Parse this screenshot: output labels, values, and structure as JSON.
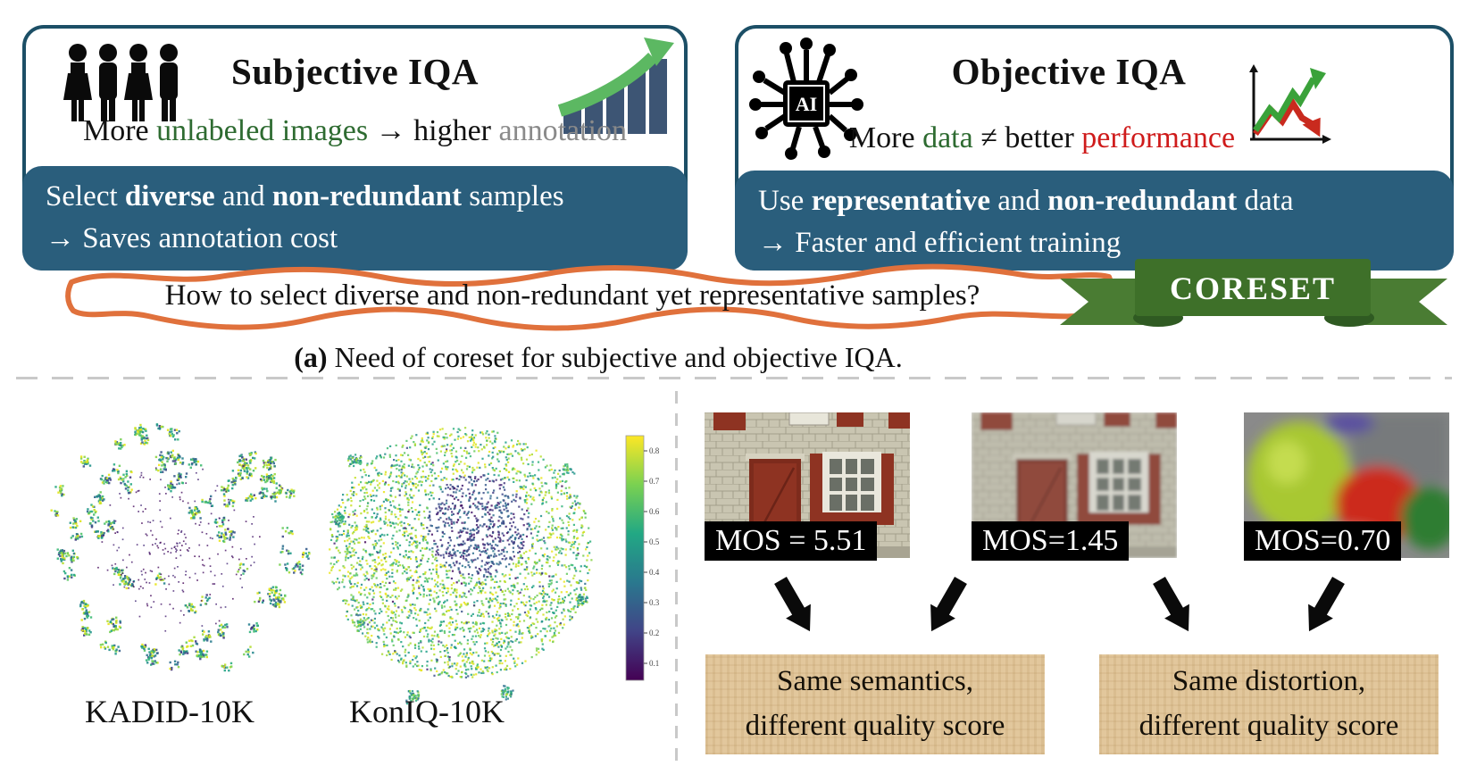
{
  "subjective_panel": {
    "title": "Subjective IQA",
    "fact_line": {
      "pre": "More ",
      "green": "unlabeled images",
      "mid": " → higher ",
      "gray": "annotation"
    },
    "action_line1": {
      "pre": "Select ",
      "bold1": "diverse",
      "mid": " and ",
      "bold2": "non-redundant",
      "post": " samples"
    },
    "action_line2": "→ Saves annotation cost"
  },
  "objective_panel": {
    "title": "Objective IQA",
    "ai_chip_label": "AI",
    "fact_line": {
      "pre": "More ",
      "green": "data",
      "mid": " ≠ better ",
      "red": "performance"
    },
    "action_line1": {
      "pre": "Use ",
      "bold1": "representative",
      "mid": " and ",
      "bold2": "non-redundant",
      "post": " data"
    },
    "action_line2": "→ Faster and efficient training"
  },
  "banner": {
    "question": "How to select diverse and non-redundant yet representative samples?",
    "ribbon_label": "CORESET"
  },
  "caption": {
    "prefix": "(a)",
    "text": " Need of coreset for subjective and objective IQA."
  },
  "tsne": {
    "type": "scatter",
    "description": "t-SNE embeddings colored by quality score (viridis colormap)",
    "left_label": "KADID-10K",
    "right_label": "KonIQ-10K",
    "colorbar_ticks": [
      "0.8",
      "0.7",
      "0.6",
      "0.5",
      "0.4",
      "0.3",
      "0.2",
      "0.1"
    ]
  },
  "examples": {
    "images": [
      {
        "mos_label": "MOS = 5.51"
      },
      {
        "mos_label": "MOS=1.45"
      },
      {
        "mos_label": "MOS=0.70"
      }
    ],
    "conclusions": [
      {
        "line1": "Same semantics,",
        "line2": "different quality score"
      },
      {
        "line1": "Same distortion,",
        "line2": "different quality score"
      }
    ]
  },
  "colors": {
    "panel_border": "#1c4f66",
    "action_box": "#2a5e7c",
    "banner_orange": "#e0713c",
    "ribbon_green": "#4a7c33",
    "ribbon_band_green": "#3e7029",
    "green_text": "#2e6b31",
    "red_text": "#cf1b1b",
    "gray_text": "#8a8a8a",
    "bar_blue": "#3d5574",
    "arrow_green": "#5cb862"
  }
}
